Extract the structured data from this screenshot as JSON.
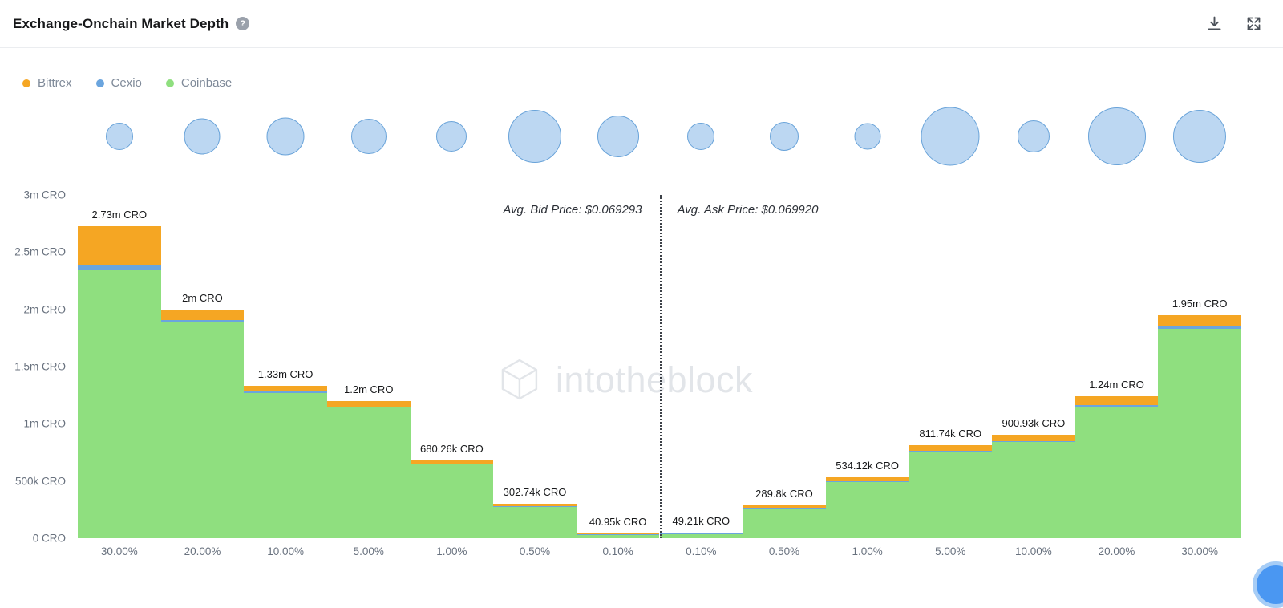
{
  "header": {
    "title": "Exchange-Onchain Market Depth",
    "help_icon": "?"
  },
  "legend": {
    "items": [
      {
        "key": "bittrex",
        "label": "Bittrex",
        "color": "#f5a623"
      },
      {
        "key": "cexio",
        "label": "Cexio",
        "color": "#6ba5de"
      },
      {
        "key": "coinbase",
        "label": "Coinbase",
        "color": "#8fdf7f"
      }
    ]
  },
  "bubbles": {
    "color": "#bcd7f2",
    "border_color": "#69a3d9",
    "sizes": [
      34,
      45,
      47,
      44,
      38,
      66,
      52,
      34,
      36,
      33,
      73,
      40,
      72,
      66
    ]
  },
  "watermark": {
    "text": "intotheblock"
  },
  "chart_data": {
    "type": "bar",
    "stacked": true,
    "title": "Exchange-Onchain Market Depth",
    "unit": "CRO",
    "categories": [
      "30.00%",
      "20.00%",
      "10.00%",
      "5.00%",
      "1.00%",
      "0.50%",
      "0.10%",
      "0.10%",
      "0.50%",
      "1.00%",
      "5.00%",
      "10.00%",
      "20.00%",
      "30.00%"
    ],
    "sides": [
      "bid",
      "bid",
      "bid",
      "bid",
      "bid",
      "bid",
      "bid",
      "ask",
      "ask",
      "ask",
      "ask",
      "ask",
      "ask",
      "ask"
    ],
    "divider_index": 7,
    "labels": [
      "2.73m CRO",
      "2m CRO",
      "1.33m CRO",
      "1.2m CRO",
      "680.26k CRO",
      "302.74k CRO",
      "40.95k CRO",
      "49.21k CRO",
      "289.8k CRO",
      "534.12k CRO",
      "811.74k CRO",
      "900.93k CRO",
      "1.24m CRO",
      "1.95m CRO"
    ],
    "totals_cro": [
      2730000,
      2000000,
      1330000,
      1200000,
      680260,
      302740,
      40950,
      49210,
      289800,
      534120,
      811740,
      900930,
      1240000,
      1950000
    ],
    "series": [
      {
        "key": "coinbase",
        "name": "Coinbase",
        "color": "#8fdf7f",
        "values": [
          2.35,
          1.89,
          1.27,
          1.14,
          0.645,
          0.272,
          0.03,
          0.036,
          0.262,
          0.495,
          0.755,
          0.838,
          1.15,
          1.83
        ]
      },
      {
        "key": "cexio",
        "name": "Cexio",
        "color": "#6ba5de",
        "values": [
          0.035,
          0.02,
          0.015,
          0.012,
          0.008,
          0.006,
          0.003,
          0.003,
          0.004,
          0.006,
          0.008,
          0.008,
          0.012,
          0.02
        ]
      },
      {
        "key": "bittrex",
        "name": "Bittrex",
        "color": "#f5a623",
        "values": [
          0.345,
          0.09,
          0.045,
          0.048,
          0.027,
          0.025,
          0.008,
          0.01,
          0.024,
          0.033,
          0.049,
          0.055,
          0.078,
          0.1
        ]
      }
    ],
    "ylim": [
      0,
      3
    ],
    "y_ticks": [
      {
        "v": 0,
        "label": "0 CRO"
      },
      {
        "v": 0.5,
        "label": "500k CRO"
      },
      {
        "v": 1,
        "label": "1m CRO"
      },
      {
        "v": 1.5,
        "label": "1.5m CRO"
      },
      {
        "v": 2,
        "label": "2m CRO"
      },
      {
        "v": 2.5,
        "label": "2.5m CRO"
      },
      {
        "v": 3,
        "label": "3m CRO"
      }
    ],
    "annotations": {
      "bid": "Avg. Bid Price: $0.069293",
      "ask": "Avg. Ask Price: $0.069920"
    },
    "grid": false,
    "legend_position": "top-left"
  }
}
